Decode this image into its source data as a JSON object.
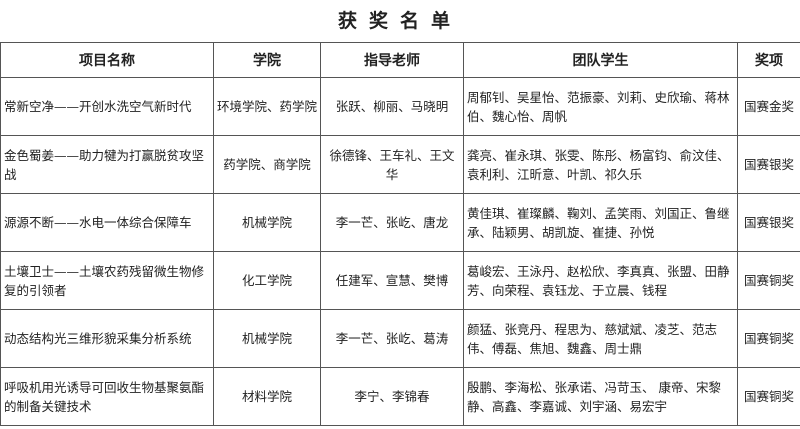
{
  "title": "获奖名单",
  "headers": [
    "项目名称",
    "学院",
    "指导老师",
    "团队学生",
    "奖项"
  ],
  "rows": [
    {
      "project": "常新空净——开创水洗空气新时代",
      "college": "环境学院、药学院",
      "advisors": "张跃、柳丽、马晓明",
      "students": "周郁钊、吴星怡、范振豪、刘莉、史欣瑜、蒋林伯、魏心怡、周帆",
      "award": "国赛金奖"
    },
    {
      "project": "金色蜀姜——助力犍为打赢脱贫攻坚战",
      "college": "药学院、商学院",
      "advisors": "徐德锋、王车礼、王文华",
      "students": "龚亮、崔永琪、张雯、陈彤、杨富钧、俞汶佳、袁利利、江昕意、叶凯、祁久乐",
      "award": "国赛银奖"
    },
    {
      "project": "源源不断——水电一体综合保障车",
      "college": "机械学院",
      "advisors": "李一芒、张屹、唐龙",
      "students": "黄佳琪、崔璨麟、鞠刘、孟笑雨、刘国正、鲁继承、陆颖男、胡凯旋、崔捷、孙悦",
      "award": "国赛银奖"
    },
    {
      "project": "土壤卫士——土壤农药残留微生物修复的引领者",
      "college": "化工学院",
      "advisors": "任建军、宣慧、樊博",
      "students": "葛峻宏、王泳丹、赵松欣、李真真、张盟、田静芳、向荣程、袁钰龙、于立晨、钱程",
      "award": "国赛铜奖"
    },
    {
      "project": "动态结构光三维形貌采集分析系统",
      "college": "机械学院",
      "advisors": "李一芒、张屹、葛涛",
      "students": "颜猛、张竞丹、程思为、慈斌斌、凌芝、范志伟、傅磊、焦旭、魏鑫、周士鼎",
      "award": "国赛铜奖"
    },
    {
      "project": "呼吸机用光诱导可回收生物基聚氨酯的制备关键技术",
      "college": "材料学院",
      "advisors": "李宁、李锦春",
      "students": "殷鹏、李海松、张承诺、冯苛玉、 康帝、宋黎静、高鑫、李嘉诚、刘宇涵、易宏宇",
      "award": "国赛铜奖"
    }
  ]
}
